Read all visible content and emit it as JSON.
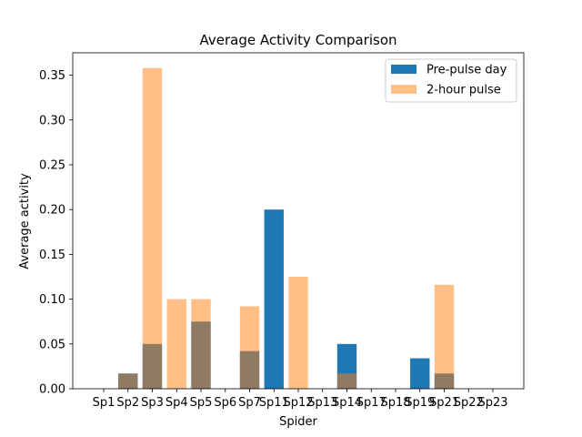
{
  "chart_data": {
    "type": "bar",
    "title": "Average Activity Comparison",
    "xlabel": "Spider",
    "ylabel": "Average activity",
    "categories": [
      "Sp1",
      "Sp2",
      "Sp3",
      "Sp4",
      "Sp5",
      "Sp6",
      "Sp7",
      "Sp11",
      "Sp12",
      "Sp13",
      "Sp14",
      "Sp17",
      "Sp18",
      "Sp19",
      "Sp21",
      "Sp22",
      "Sp23"
    ],
    "series": [
      {
        "name": "Pre-pulse day",
        "color": "#1f77b4",
        "opacity": 1.0,
        "values": [
          0,
          0.017,
          0.05,
          0,
          0.075,
          0,
          0.042,
          0.2,
          0,
          0,
          0.05,
          0,
          0,
          0.034,
          0.017,
          0,
          0
        ]
      },
      {
        "name": "2-hour pulse",
        "color": "#ff7f0e",
        "opacity": 0.5,
        "values": [
          0,
          0.017,
          0.358,
          0.1,
          0.1,
          0,
          0.092,
          0,
          0.125,
          0,
          0.017,
          0,
          0,
          0,
          0.116,
          0,
          0
        ]
      }
    ],
    "ylim": [
      0,
      0.375
    ],
    "yticks": [
      "0.00",
      "0.05",
      "0.10",
      "0.15",
      "0.20",
      "0.25",
      "0.30",
      "0.35"
    ],
    "legend_position": "top-right",
    "grid": false
  }
}
